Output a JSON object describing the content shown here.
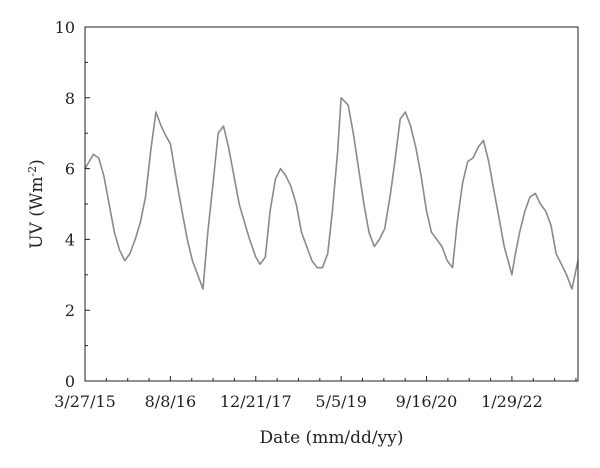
{
  "chart_data": {
    "type": "line",
    "title": "",
    "xlabel": "Date (mm/dd/yy)",
    "ylabel_main": "UV (Wm",
    "ylabel_sup": "-2",
    "ylabel_close": ")",
    "x_tick_labels": [
      "3/27/15",
      "8/8/16",
      "12/21/17",
      "5/5/19",
      "9/16/20",
      "1/29/22"
    ],
    "x_tick_dates": [
      "2015-03-27",
      "2016-08-08",
      "2017-12-21",
      "2019-05-05",
      "2020-09-16",
      "2022-01-29"
    ],
    "xlim": [
      "2015-03-27",
      "2023-02-20"
    ],
    "ylim": [
      0,
      10
    ],
    "y_ticks": [
      0,
      2,
      4,
      6,
      8,
      10
    ],
    "y_tick_labels": [
      "0",
      "2",
      "4",
      "6",
      "8",
      "10"
    ],
    "grid": false,
    "legend": "none",
    "line_color": "#8a8a8a",
    "series": [
      {
        "x": [
          "2015-03-27",
          "2015-05-15",
          "2015-06-15",
          "2015-07-15",
          "2015-08-15",
          "2015-09-15",
          "2015-10-15",
          "2015-11-15",
          "2015-12-15",
          "2016-01-15",
          "2016-02-15",
          "2016-03-15",
          "2016-04-15",
          "2016-05-15",
          "2016-06-15",
          "2016-07-15",
          "2016-08-08",
          "2016-09-15",
          "2016-10-15",
          "2016-11-15",
          "2016-12-15",
          "2017-01-15",
          "2017-02-15",
          "2017-03-15",
          "2017-04-15",
          "2017-05-15",
          "2017-06-15",
          "2017-07-15",
          "2017-08-15",
          "2017-09-15",
          "2017-10-15",
          "2017-11-15",
          "2017-12-21",
          "2018-01-15",
          "2018-02-15",
          "2018-03-15",
          "2018-04-15",
          "2018-05-15",
          "2018-06-15",
          "2018-07-15",
          "2018-08-15",
          "2018-09-15",
          "2018-10-15",
          "2018-11-15",
          "2018-12-15",
          "2019-01-15",
          "2019-02-15",
          "2019-03-15",
          "2019-04-15",
          "2019-05-05",
          "2019-06-15",
          "2019-07-15",
          "2019-08-15",
          "2019-09-15",
          "2019-10-15",
          "2019-11-15",
          "2019-12-15",
          "2020-01-15",
          "2020-02-15",
          "2020-03-15",
          "2020-04-15",
          "2020-05-15",
          "2020-06-15",
          "2020-07-15",
          "2020-08-15",
          "2020-09-16",
          "2020-10-15",
          "2020-11-15",
          "2020-12-15",
          "2021-01-15",
          "2021-02-15",
          "2021-03-15",
          "2021-04-15",
          "2021-05-15",
          "2021-06-15",
          "2021-07-15",
          "2021-08-15",
          "2021-09-15",
          "2021-10-15",
          "2021-11-15",
          "2021-12-15",
          "2022-01-29",
          "2022-02-15",
          "2022-03-15",
          "2022-04-15",
          "2022-05-15",
          "2022-06-15",
          "2022-07-15",
          "2022-08-15",
          "2022-09-15",
          "2022-10-15",
          "2022-11-15",
          "2022-12-15",
          "2023-01-15",
          "2023-02-20"
        ],
        "y": [
          6.0,
          6.4,
          6.3,
          5.8,
          5.0,
          4.2,
          3.7,
          3.4,
          3.6,
          4.0,
          4.5,
          5.2,
          6.5,
          7.6,
          7.2,
          6.9,
          6.7,
          5.6,
          4.8,
          4.0,
          3.4,
          3.0,
          2.6,
          4.2,
          5.6,
          7.0,
          7.2,
          6.6,
          5.8,
          5.0,
          4.5,
          4.0,
          3.5,
          3.3,
          3.5,
          4.8,
          5.7,
          6.0,
          5.8,
          5.5,
          5.0,
          4.2,
          3.8,
          3.4,
          3.2,
          3.2,
          3.6,
          4.8,
          6.5,
          8.0,
          7.8,
          7.0,
          6.0,
          5.0,
          4.2,
          3.8,
          4.0,
          4.3,
          5.2,
          6.2,
          7.4,
          7.6,
          7.2,
          6.6,
          5.8,
          4.8,
          4.2,
          4.0,
          3.8,
          3.4,
          3.2,
          4.5,
          5.6,
          6.2,
          6.3,
          6.6,
          6.8,
          6.2,
          5.4,
          4.6,
          3.8,
          3.0,
          3.5,
          4.2,
          4.8,
          5.2,
          5.3,
          5.0,
          4.8,
          4.4,
          3.6,
          3.3,
          3.0,
          2.6,
          3.4
        ]
      }
    ]
  }
}
